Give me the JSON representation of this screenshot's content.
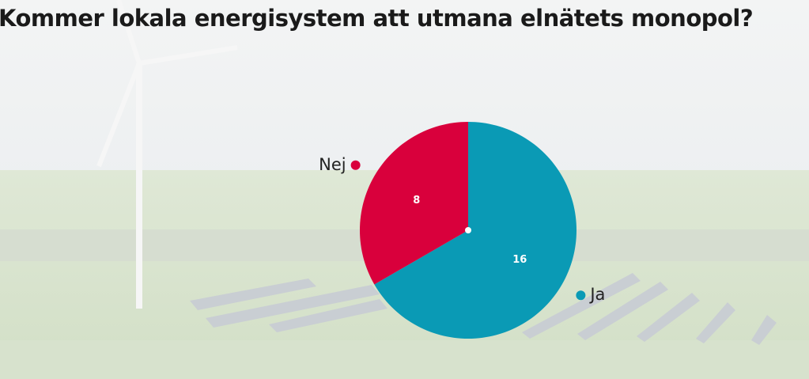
{
  "chart_data": {
    "type": "pie",
    "title": "Kommer lokala energisystem att utmana elnätets monopol?",
    "categories": [
      "Ja",
      "Nej"
    ],
    "values": [
      16,
      8
    ],
    "colors": [
      "#0a9ab5",
      "#d9003c"
    ]
  }
}
